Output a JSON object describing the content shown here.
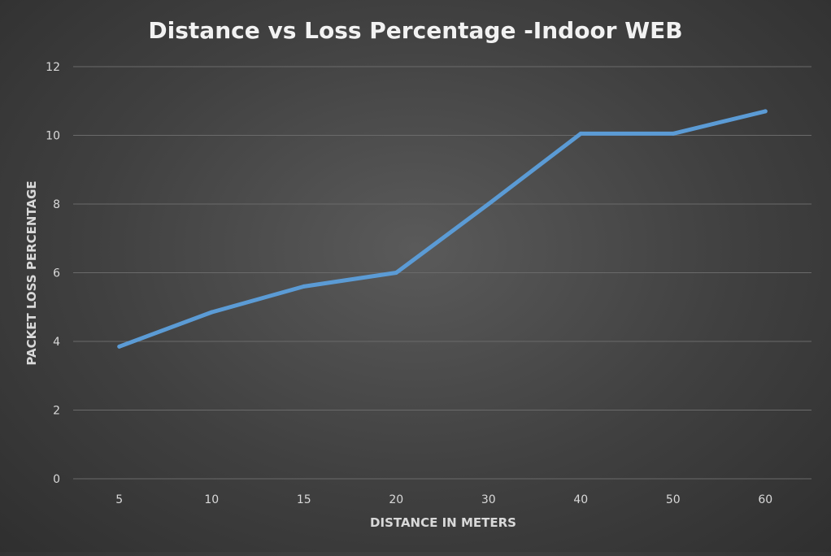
{
  "chart_data": {
    "type": "line",
    "title": "Distance vs Loss Percentage -Indoor WEB",
    "xlabel": "DISTANCE IN METERS",
    "ylabel": "PACKET LOSS PERCENTAGE",
    "categories": [
      "5",
      "10",
      "15",
      "20",
      "30",
      "40",
      "50",
      "60"
    ],
    "series": [
      {
        "values": [
          3.85,
          4.85,
          5.6,
          6.0,
          8.0,
          10.05,
          10.05,
          10.7
        ]
      }
    ],
    "ylim": [
      0,
      12
    ],
    "yticks": [
      "0",
      "2",
      "4",
      "6",
      "8",
      "10",
      "12"
    ],
    "grid": true,
    "legend": "none",
    "colors": {
      "line": "#5b9bd5",
      "grid": "#6a6a6a",
      "text": "#d9d9d9",
      "title": "#f2f2f2"
    }
  }
}
